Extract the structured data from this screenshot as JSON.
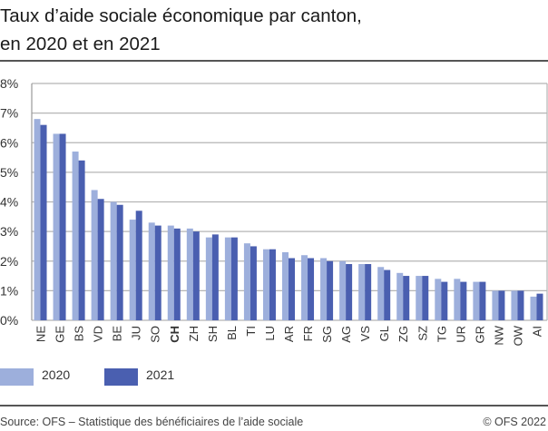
{
  "chart_data": {
    "type": "bar",
    "title": "Taux d’aide sociale économique par canton, en 2020 et en 2021",
    "title_lines": [
      "Taux d’aide sociale économique par canton,",
      "en 2020 et en 2021"
    ],
    "categories": [
      "NE",
      "GE",
      "BS",
      "VD",
      "BE",
      "JU",
      "SO",
      "CH",
      "ZH",
      "SH",
      "BL",
      "TI",
      "LU",
      "AR",
      "FR",
      "SG",
      "AG",
      "VS",
      "GL",
      "ZG",
      "SZ",
      "TG",
      "UR",
      "GR",
      "NW",
      "OW",
      "AI"
    ],
    "highlight_category": "CH",
    "series": [
      {
        "name": "2020",
        "color": "#9dafdc",
        "values": [
          6.8,
          6.3,
          5.7,
          4.4,
          4.0,
          3.4,
          3.3,
          3.2,
          3.1,
          2.8,
          2.8,
          2.6,
          2.4,
          2.3,
          2.2,
          2.1,
          2.0,
          1.9,
          1.8,
          1.6,
          1.5,
          1.4,
          1.4,
          1.3,
          1.0,
          1.0,
          0.8
        ]
      },
      {
        "name": "2021",
        "color": "#4a5fb0",
        "values": [
          6.6,
          6.3,
          5.4,
          4.1,
          3.9,
          3.7,
          3.2,
          3.1,
          3.0,
          2.9,
          2.8,
          2.5,
          2.4,
          2.1,
          2.1,
          2.0,
          1.9,
          1.9,
          1.7,
          1.5,
          1.5,
          1.3,
          1.3,
          1.3,
          1.0,
          1.0,
          0.9
        ]
      }
    ],
    "ylim": [
      0,
      8
    ],
    "yticks": [
      0,
      1,
      2,
      3,
      4,
      5,
      6,
      7,
      8
    ],
    "ytick_labels": [
      "0%",
      "1%",
      "2%",
      "3%",
      "4%",
      "5%",
      "6%",
      "7%",
      "8%"
    ],
    "grid": true,
    "legend_placement": "bottom-left",
    "xlabel": "",
    "ylabel": ""
  },
  "footer": {
    "source": "Source: OFS – Statistique des bénéficiaires de l’aide sociale",
    "copyright": "© OFS 2022"
  }
}
